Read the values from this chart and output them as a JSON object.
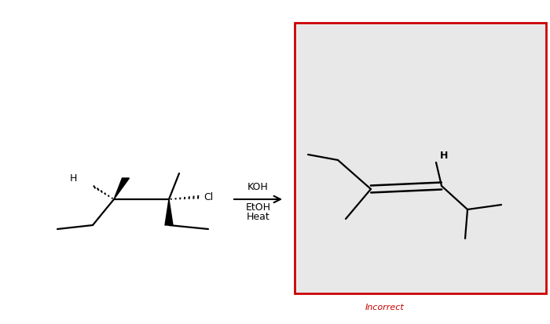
{
  "bg_color": "#ffffff",
  "box_bg": "#e8e8e8",
  "box_border": "#cc0000",
  "incorrect_color": "#cc0000",
  "incorrect_text": "Incorrect",
  "H_label": "H",
  "KOH_text": "KOH",
  "EtOH_text": "EtOH",
  "Heat_text": "Heat",
  "line_color": "#000000",
  "line_width": 1.6
}
